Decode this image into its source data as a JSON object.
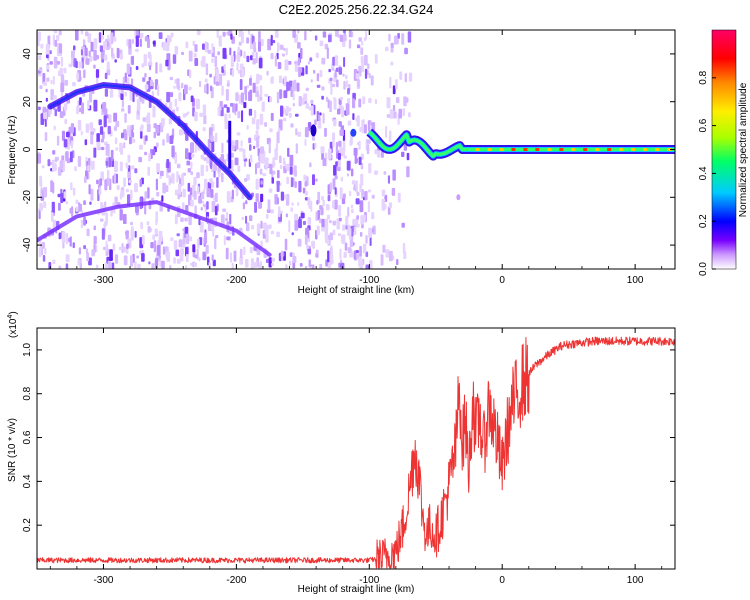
{
  "figure_title": "C2E2.2025.256.22.34.G24",
  "chart_data": [
    {
      "type": "heatmap",
      "title": "C2E2.2025.256.22.34.G24",
      "xlabel": "Height of straight line (km)",
      "ylabel": "Frequency (Hz)",
      "xlim": [
        -350,
        130
      ],
      "ylim": [
        -50,
        50
      ],
      "x_ticks": [
        -300,
        -200,
        -100,
        0,
        100
      ],
      "x_tick_labels": [
        "-300",
        "-200",
        "-100",
        "0",
        "100"
      ],
      "y_ticks": [
        -40,
        -20,
        0,
        20,
        40
      ],
      "y_tick_labels": [
        "-40",
        "-20",
        "0",
        "20",
        "40"
      ],
      "colorbar": {
        "label": "Normalized spectral amplitude",
        "range": [
          0,
          1
        ],
        "ticks": [
          0,
          0.2,
          0.4,
          0.6,
          0.8
        ],
        "tick_labels": [
          "0.0",
          "0.2",
          "0.4",
          "0.6",
          "0.8"
        ],
        "colors": [
          "#ffffff",
          "#cc99ff",
          "#7700ff",
          "#0000ff",
          "#00ccff",
          "#00ff66",
          "#aaff00",
          "#ffee00",
          "#ff8800",
          "#ff0000",
          "#ff0066"
        ]
      },
      "features": {
        "noise_region_x": [
          -350,
          -100
        ],
        "signal_line_x": [
          -100,
          130
        ],
        "signal_line_frequency": 0,
        "arc_points": [
          [
            -340,
            18
          ],
          [
            -320,
            24
          ],
          [
            -300,
            27
          ],
          [
            -280,
            26
          ],
          [
            -260,
            20
          ],
          [
            -240,
            10
          ],
          [
            -220,
            -2
          ],
          [
            -205,
            -10
          ],
          [
            -190,
            -20
          ]
        ],
        "lower_arc_points": [
          [
            -350,
            -38
          ],
          [
            -320,
            -28
          ],
          [
            -290,
            -24
          ],
          [
            -260,
            -22
          ],
          [
            -230,
            -28
          ],
          [
            -200,
            -34
          ],
          [
            -175,
            -44
          ]
        ]
      }
    },
    {
      "type": "line",
      "xlabel": "Height of straight line (km)",
      "ylabel": "SNR (10 * v/v)",
      "y_multiplier_label": "(x10",
      "y_multiplier_exponent": "4",
      "xlim": [
        -350,
        130
      ],
      "ylim": [
        0,
        1.1
      ],
      "x_ticks": [
        -300,
        -200,
        -100,
        0,
        100
      ],
      "x_tick_labels": [
        "-300",
        "-200",
        "-100",
        "0",
        "100"
      ],
      "y_ticks": [
        0.2,
        0.4,
        0.6,
        0.8,
        1.0
      ],
      "y_tick_labels": [
        "0.2",
        "0.4",
        "0.6",
        "0.8",
        "1.0"
      ],
      "series": [
        {
          "name": "SNR",
          "color": "#ee3333",
          "x": [
            -350,
            -300,
            -250,
            -200,
            -150,
            -110,
            -100,
            -90,
            -80,
            -75,
            -70,
            -66,
            -63,
            -60,
            -57,
            -54,
            -50,
            -45,
            -40,
            -35,
            -32,
            -30,
            -28,
            -25,
            -22,
            -20,
            -17,
            -14,
            -10,
            -6,
            -3,
            0,
            3,
            8,
            15,
            25,
            35,
            45,
            55,
            70,
            85,
            100,
            115,
            130
          ],
          "values": [
            0.04,
            0.04,
            0.04,
            0.04,
            0.04,
            0.04,
            0.04,
            0.05,
            0.08,
            0.18,
            0.35,
            0.55,
            0.45,
            0.25,
            0.15,
            0.2,
            0.15,
            0.25,
            0.38,
            0.55,
            0.85,
            0.55,
            0.7,
            0.45,
            0.8,
            0.6,
            0.7,
            0.55,
            0.75,
            0.65,
            0.55,
            0.45,
            0.6,
            0.75,
            0.85,
            0.93,
            0.98,
            1.02,
            1.03,
            1.04,
            1.04,
            1.04,
            1.04,
            1.04
          ]
        }
      ]
    }
  ]
}
